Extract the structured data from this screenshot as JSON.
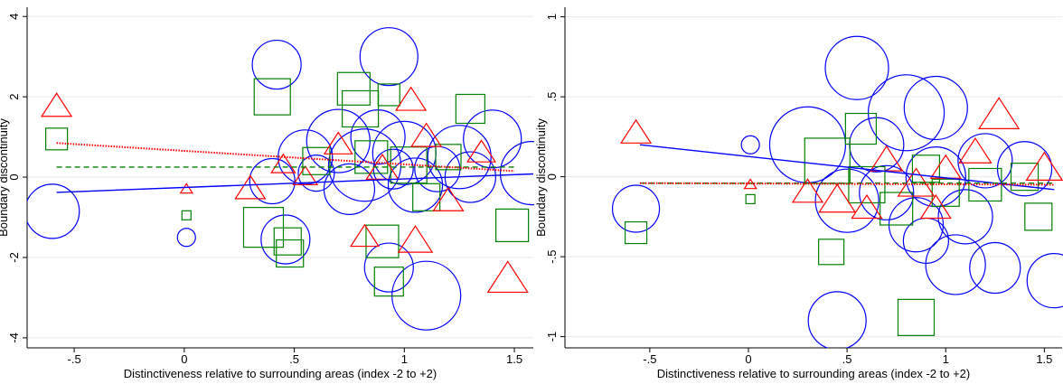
{
  "chart_data": [
    {
      "type": "scatter",
      "xlabel": "Distinctiveness relative to surrounding areas (index -2 to +2)",
      "ylabel": "Boundary discontinuity",
      "xlim": [
        -0.714,
        1.586
      ],
      "ylim": [
        -4.25,
        4.23
      ],
      "xticks": [
        {
          "value": -0.5,
          "label": "-.5"
        },
        0,
        {
          "value": 0.5,
          "label": ".5"
        },
        1,
        1.5
      ],
      "yticks": [
        -4,
        -2,
        0,
        2,
        4
      ],
      "grid": true,
      "series": [
        {
          "marker": "circle",
          "color": "#0000ff",
          "x": [
            -0.6,
            0.01,
            0.42,
            0.46,
            0.93,
            0.93,
            1.1,
            1.25,
            1.4,
            1.58,
            0.55,
            0.7,
            0.82,
            1.0,
            1.05,
            0.75,
            0.88,
            1.15,
            0.4,
            0.6,
            0.95,
            1.3
          ],
          "y": [
            -0.85,
            -1.5,
            2.8,
            -1.55,
            3.0,
            -2.25,
            -2.95,
            0.5,
            0.95,
            0.1,
            0.5,
            0.9,
            0.3,
            0.6,
            -0.2,
            -0.3,
            1.0,
            0.2,
            -0.1,
            0.1,
            0.2,
            0.0
          ],
          "size": [
            30,
            10,
            27,
            27,
            32,
            27,
            38,
            35,
            32,
            35,
            30,
            35,
            40,
            35,
            30,
            28,
            30,
            25,
            25,
            20,
            22,
            28
          ]
        },
        {
          "marker": "square",
          "color": "#008000",
          "x": [
            -0.58,
            0.01,
            0.4,
            0.36,
            0.47,
            0.48,
            0.77,
            0.8,
            0.93,
            0.9,
            0.93,
            1.3,
            1.49,
            1.02,
            0.85,
            1.2,
            0.6,
            1.1
          ],
          "y": [
            0.95,
            -0.95,
            2.0,
            -1.25,
            -1.6,
            -1.9,
            2.2,
            1.7,
            2.05,
            -1.6,
            -2.6,
            1.7,
            -1.2,
            0.3,
            0.5,
            0.5,
            0.4,
            -0.5
          ],
          "size": [
            12,
            5,
            20,
            22,
            15,
            15,
            18,
            20,
            12,
            18,
            16,
            16,
            18,
            20,
            18,
            14,
            15,
            15
          ]
        },
        {
          "marker": "triangle",
          "color": "#ff0000",
          "x": [
            -0.58,
            0.01,
            0.3,
            0.45,
            1.03,
            1.05,
            0.82,
            1.47,
            1.2,
            0.7,
            0.9,
            1.35,
            0.55,
            1.1
          ],
          "y": [
            1.75,
            -0.3,
            -0.3,
            0.3,
            1.9,
            -1.6,
            -1.5,
            -2.55,
            -0.6,
            0.8,
            0.2,
            0.6,
            0.0,
            1.0
          ],
          "size": [
            15,
            6,
            15,
            12,
            15,
            17,
            14,
            20,
            15,
            14,
            16,
            14,
            12,
            15
          ]
        }
      ],
      "fits": [
        {
          "color": "#0000ff",
          "style": "solid",
          "x": [
            -0.58,
            1.586
          ],
          "y": [
            -0.38,
            0.08
          ]
        },
        {
          "color": "#008000",
          "style": "dashed",
          "x": [
            -0.58,
            1.5
          ],
          "y": [
            0.25,
            0.25
          ]
        },
        {
          "color": "#ff0000",
          "style": "dotted",
          "x": [
            -0.58,
            1.5
          ],
          "y": [
            0.85,
            0.15
          ]
        }
      ]
    },
    {
      "type": "scatter",
      "xlabel": "Distinctiveness relative to surrounding areas (index -2 to +2)",
      "ylabel": "Boundary discontinuity",
      "xlim": [
        -0.93,
        1.59
      ],
      "ylim": [
        -1.07,
        1.06
      ],
      "xticks": [
        {
          "value": -0.5,
          "label": "-.5"
        },
        0,
        {
          "value": 0.5,
          "label": ".5"
        },
        1,
        1.5
      ],
      "yticks": [
        -1,
        {
          "value": -0.5,
          "label": "-.5"
        },
        0,
        {
          "value": 0.5,
          "label": ".5"
        },
        1
      ],
      "grid": true,
      "series": [
        {
          "marker": "circle",
          "color": "#0000ff",
          "x": [
            -0.57,
            0.01,
            0.45,
            0.55,
            0.3,
            0.8,
            0.95,
            1.25,
            1.05,
            1.55,
            0.7,
            0.85,
            0.95,
            1.2,
            1.4,
            0.5,
            0.65,
            1.1,
            0.9
          ],
          "y": [
            -0.2,
            0.2,
            -0.9,
            0.68,
            0.2,
            0.4,
            0.43,
            -0.57,
            -0.55,
            -0.65,
            -0.1,
            -0.3,
            0.0,
            0.1,
            0.05,
            -0.15,
            0.2,
            -0.25,
            -0.4
          ],
          "size": [
            26,
            10,
            32,
            35,
            42,
            42,
            35,
            28,
            33,
            30,
            30,
            30,
            33,
            30,
            30,
            35,
            30,
            30,
            25
          ]
        },
        {
          "marker": "square",
          "color": "#008000",
          "x": [
            -0.57,
            0.01,
            0.42,
            0.85,
            0.57,
            0.4,
            1.4,
            1.47,
            0.75,
            1.0,
            1.2,
            0.6,
            0.9
          ],
          "y": [
            -0.35,
            -0.14,
            -0.47,
            -0.88,
            0.3,
            0.1,
            0.0,
            -0.25,
            -0.2,
            -0.1,
            -0.05,
            -0.05,
            0.05
          ],
          "size": [
            12,
            5,
            14,
            20,
            17,
            25,
            15,
            15,
            18,
            15,
            18,
            20,
            15
          ]
        },
        {
          "marker": "triangle",
          "color": "#ff0000",
          "x": [
            -0.57,
            0.01,
            1.27,
            0.3,
            0.45,
            0.7,
            0.85,
            1.0,
            1.15,
            1.5,
            0.95,
            0.6
          ],
          "y": [
            0.27,
            -0.05,
            0.38,
            -0.1,
            -0.15,
            0.1,
            -0.05,
            0.05,
            0.15,
            0.05,
            -0.2,
            -0.2
          ],
          "size": [
            15,
            6,
            20,
            15,
            18,
            16,
            18,
            15,
            16,
            18,
            15,
            15
          ]
        }
      ],
      "fits": [
        {
          "color": "#0000ff",
          "style": "solid",
          "x": [
            -0.55,
            1.55
          ],
          "y": [
            0.2,
            -0.08
          ]
        },
        {
          "color": "#008000",
          "style": "dashed",
          "x": [
            -0.55,
            1.55
          ],
          "y": [
            -0.04,
            -0.04
          ]
        },
        {
          "color": "#ff0000",
          "style": "dotted",
          "x": [
            -0.55,
            1.55
          ],
          "y": [
            -0.04,
            -0.05
          ]
        }
      ]
    }
  ]
}
